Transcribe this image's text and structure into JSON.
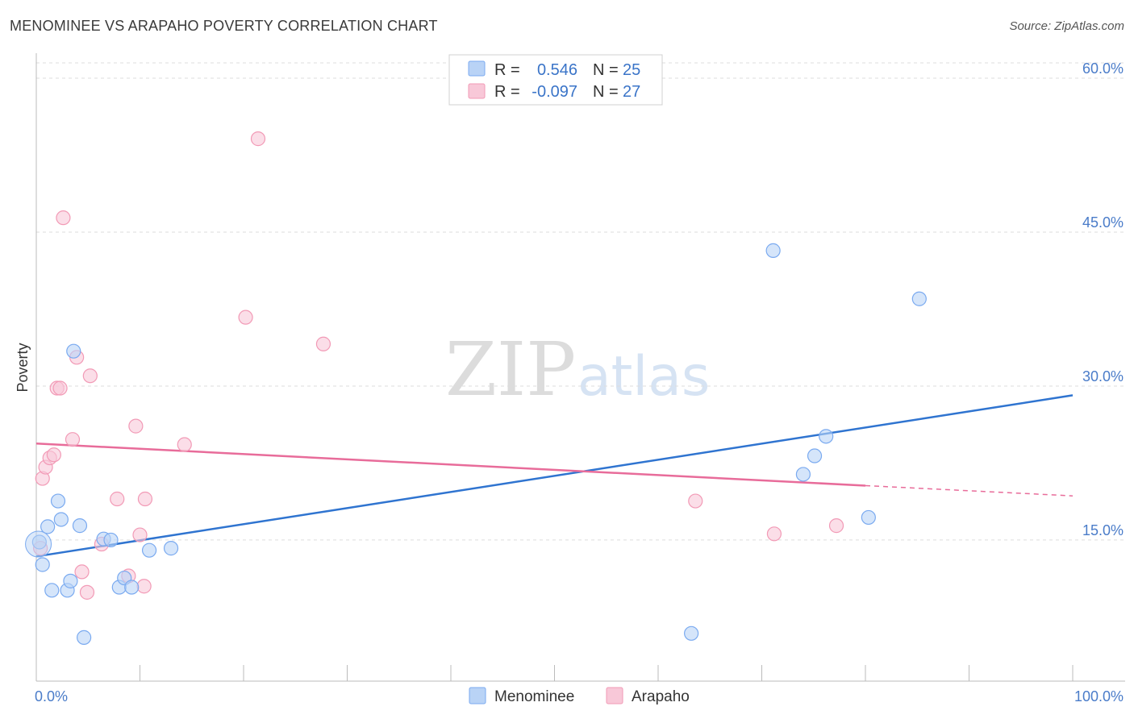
{
  "title": "MENOMINEE VS ARAPAHO POVERTY CORRELATION CHART",
  "source": "Source: ZipAtlas.com",
  "watermark": {
    "part1": "ZIP",
    "part2": "atlas"
  },
  "colors": {
    "menominee": "#7aaaf0",
    "menominee_fill": "#b9d3f6",
    "arapaho": "#f29ab6",
    "arapaho_fill": "#f8c8d8",
    "blue_line": "#2f74d0",
    "pink_line": "#e86c9a",
    "tick_text": "#4a7cc9"
  },
  "legend": {
    "rows": [
      {
        "r_label": "R =",
        "r_value": "0.546",
        "n_label": "N =",
        "n_value": "25"
      },
      {
        "r_label": "R =",
        "r_value": "-0.097",
        "n_label": "N =",
        "n_value": "27"
      }
    ]
  },
  "chart_data": {
    "type": "scatter",
    "title": "MENOMINEE VS ARAPAHO POVERTY CORRELATION CHART",
    "xlabel": "",
    "ylabel": "Poverty",
    "xlim": [
      0,
      100
    ],
    "ylim": [
      0,
      60
    ],
    "x_tick_labels": [
      "0.0%",
      "100.0%"
    ],
    "y_ticks": [
      15,
      30,
      45,
      60
    ],
    "y_tick_labels": [
      "15.0%",
      "30.0%",
      "45.0%",
      "60.0%"
    ],
    "grid": true,
    "legend_position": "top-center",
    "series": [
      {
        "name": "Menominee",
        "points": [
          [
            0.3,
            14.8
          ],
          [
            0.6,
            12.6
          ],
          [
            1.1,
            16.3
          ],
          [
            1.5,
            10.1
          ],
          [
            2.1,
            18.8
          ],
          [
            2.4,
            17.0
          ],
          [
            3.0,
            10.1
          ],
          [
            3.3,
            11.0
          ],
          [
            3.6,
            33.4
          ],
          [
            4.2,
            16.4
          ],
          [
            4.6,
            5.5
          ],
          [
            6.5,
            15.1
          ],
          [
            7.2,
            15.0
          ],
          [
            8.0,
            10.4
          ],
          [
            8.5,
            11.3
          ],
          [
            9.2,
            10.4
          ],
          [
            10.9,
            14.0
          ],
          [
            13.0,
            14.2
          ],
          [
            63.2,
            5.9
          ],
          [
            71.1,
            43.2
          ],
          [
            74.0,
            21.4
          ],
          [
            75.1,
            23.2
          ],
          [
            76.2,
            25.1
          ],
          [
            80.3,
            17.2
          ],
          [
            85.2,
            38.5
          ]
        ],
        "trend": {
          "start": [
            0,
            13.4
          ],
          "end": [
            100,
            29.1
          ]
        }
      },
      {
        "name": "Arapaho",
        "points": [
          [
            0.4,
            14.2
          ],
          [
            0.6,
            21.0
          ],
          [
            0.9,
            22.1
          ],
          [
            1.3,
            23.0
          ],
          [
            1.7,
            23.3
          ],
          [
            2.0,
            29.8
          ],
          [
            2.3,
            29.8
          ],
          [
            2.6,
            46.4
          ],
          [
            3.5,
            24.8
          ],
          [
            3.9,
            32.8
          ],
          [
            4.4,
            11.9
          ],
          [
            4.9,
            9.9
          ],
          [
            5.2,
            31.0
          ],
          [
            6.3,
            14.6
          ],
          [
            7.8,
            19.0
          ],
          [
            8.9,
            11.5
          ],
          [
            9.6,
            26.1
          ],
          [
            10.0,
            15.5
          ],
          [
            10.4,
            10.5
          ],
          [
            10.5,
            19.0
          ],
          [
            14.3,
            24.3
          ],
          [
            20.2,
            36.7
          ],
          [
            21.4,
            54.1
          ],
          [
            27.7,
            34.1
          ],
          [
            63.6,
            18.8
          ],
          [
            71.2,
            15.6
          ],
          [
            77.2,
            16.4
          ]
        ],
        "trend": {
          "start": [
            0,
            24.4
          ],
          "end": [
            80,
            20.3
          ],
          "dashed_end": [
            100,
            19.3
          ]
        }
      }
    ]
  }
}
